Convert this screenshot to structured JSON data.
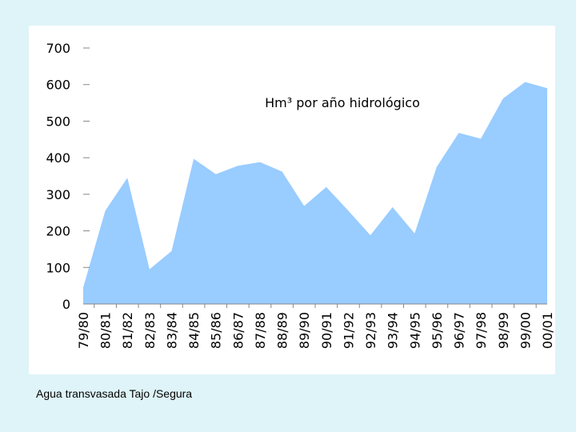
{
  "caption": "Agua transvasada Tajo /Segura",
  "colors": {
    "page_background": "#dff4f8",
    "area_fill": "#99ccff",
    "axis": "#888888",
    "text": "#000000"
  },
  "chart_data": {
    "type": "area",
    "title": "Hm³ por año hidrológico",
    "xlabel": "",
    "ylabel": "",
    "ylim": [
      0,
      700
    ],
    "yticks": [
      0,
      100,
      200,
      300,
      400,
      500,
      600,
      700
    ],
    "grid": false,
    "legend": "none",
    "categories": [
      "79/80",
      "80/81",
      "81/82",
      "82/83",
      "83/84",
      "84/85",
      "85/86",
      "86/87",
      "87/88",
      "88/89",
      "89/90",
      "90/91",
      "91/92",
      "92/93",
      "93/94",
      "94/95",
      "95/96",
      "96/97",
      "97/98",
      "98/99",
      "99/00",
      "00/01"
    ],
    "series": [
      {
        "values": [
          45,
          255,
          345,
          95,
          145,
          397,
          355,
          378,
          388,
          362,
          268,
          320,
          255,
          188,
          265,
          193,
          375,
          468,
          452,
          562,
          607,
          590
        ]
      }
    ]
  }
}
